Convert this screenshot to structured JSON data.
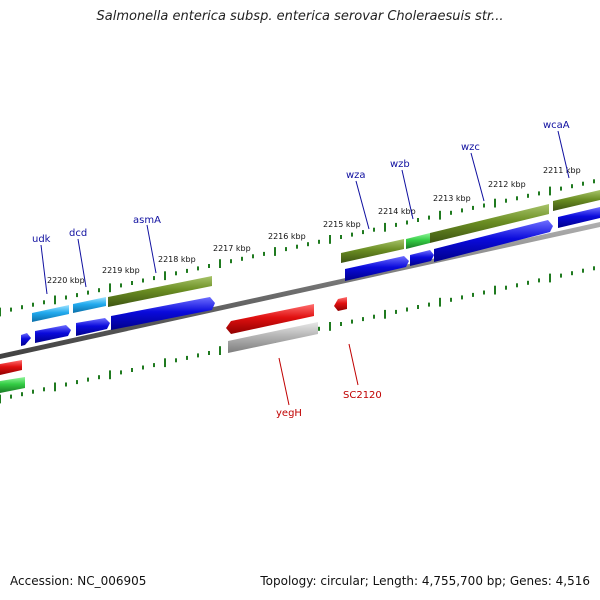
{
  "title": "Salmonella enterica subsp. enterica serovar Choleraesuis str...",
  "footer": {
    "accession": "Accession: NC_006905",
    "stats": "Topology: circular; Length: 4,755,700 bp; Genes: 4,516"
  },
  "colors": {
    "backbone": "#777777",
    "tick": "#1f7a1f",
    "cds_blue": "#0a0adc",
    "cds_red": "#e01010",
    "rna_cyan": "#22aaee",
    "gene_olive": "#6b8e23",
    "gene_green": "#33cc44",
    "pseudo_gray": "#b5b5b5",
    "label_blue": "#1010a0",
    "label_red": "#c00000"
  },
  "kbp_ticks": [
    "2220 kbp",
    "2219 kbp",
    "2218 kbp",
    "2217 kbp",
    "2216 kbp",
    "2215 kbp",
    "2214 kbp",
    "2213 kbp",
    "2212 kbp",
    "2211 kbp"
  ],
  "genes_top": [
    "udk",
    "dcd",
    "asmA",
    "wza",
    "wzb",
    "wzc",
    "wcaA"
  ],
  "genes_bottom": [
    "yegH",
    "SC2120"
  ]
}
